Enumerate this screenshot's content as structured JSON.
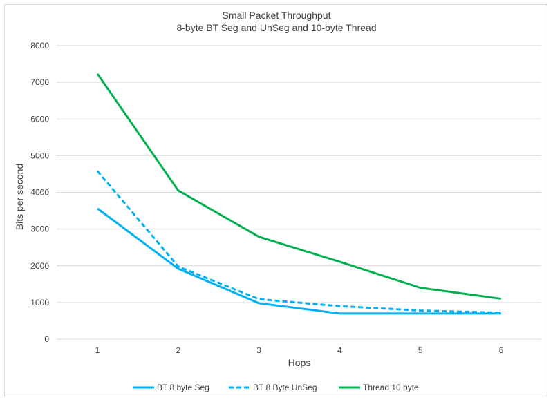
{
  "chart_data": {
    "type": "line",
    "title": "Small Packet Throughput",
    "subtitle": "8-byte BT Seg and UnSeg and 10-byte Thread",
    "xlabel": "Hops",
    "ylabel": "Bits per second",
    "x": [
      "1",
      "2",
      "3",
      "4",
      "5",
      "6"
    ],
    "ylim": [
      0,
      8000
    ],
    "yticks": [
      "0",
      "1000",
      "2000",
      "3000",
      "4000",
      "5000",
      "6000",
      "7000",
      "8000"
    ],
    "ytick_values": [
      0,
      1000,
      2000,
      3000,
      4000,
      5000,
      6000,
      7000,
      8000
    ],
    "grid": true,
    "legend_position": "bottom",
    "series": [
      {
        "name": "BT 8 byte Seg",
        "color": "#00b0f0",
        "dash": "solid",
        "values": [
          3560,
          1920,
          980,
          700,
          700,
          700
        ]
      },
      {
        "name": "BT 8 Byte UnSeg",
        "color": "#00b0f0",
        "dash": "dashed",
        "values": [
          4580,
          1980,
          1090,
          900,
          780,
          720
        ]
      },
      {
        "name": "Thread 10 byte",
        "color": "#00b050",
        "dash": "solid",
        "values": [
          7230,
          4050,
          2790,
          2110,
          1400,
          1100
        ]
      }
    ]
  }
}
